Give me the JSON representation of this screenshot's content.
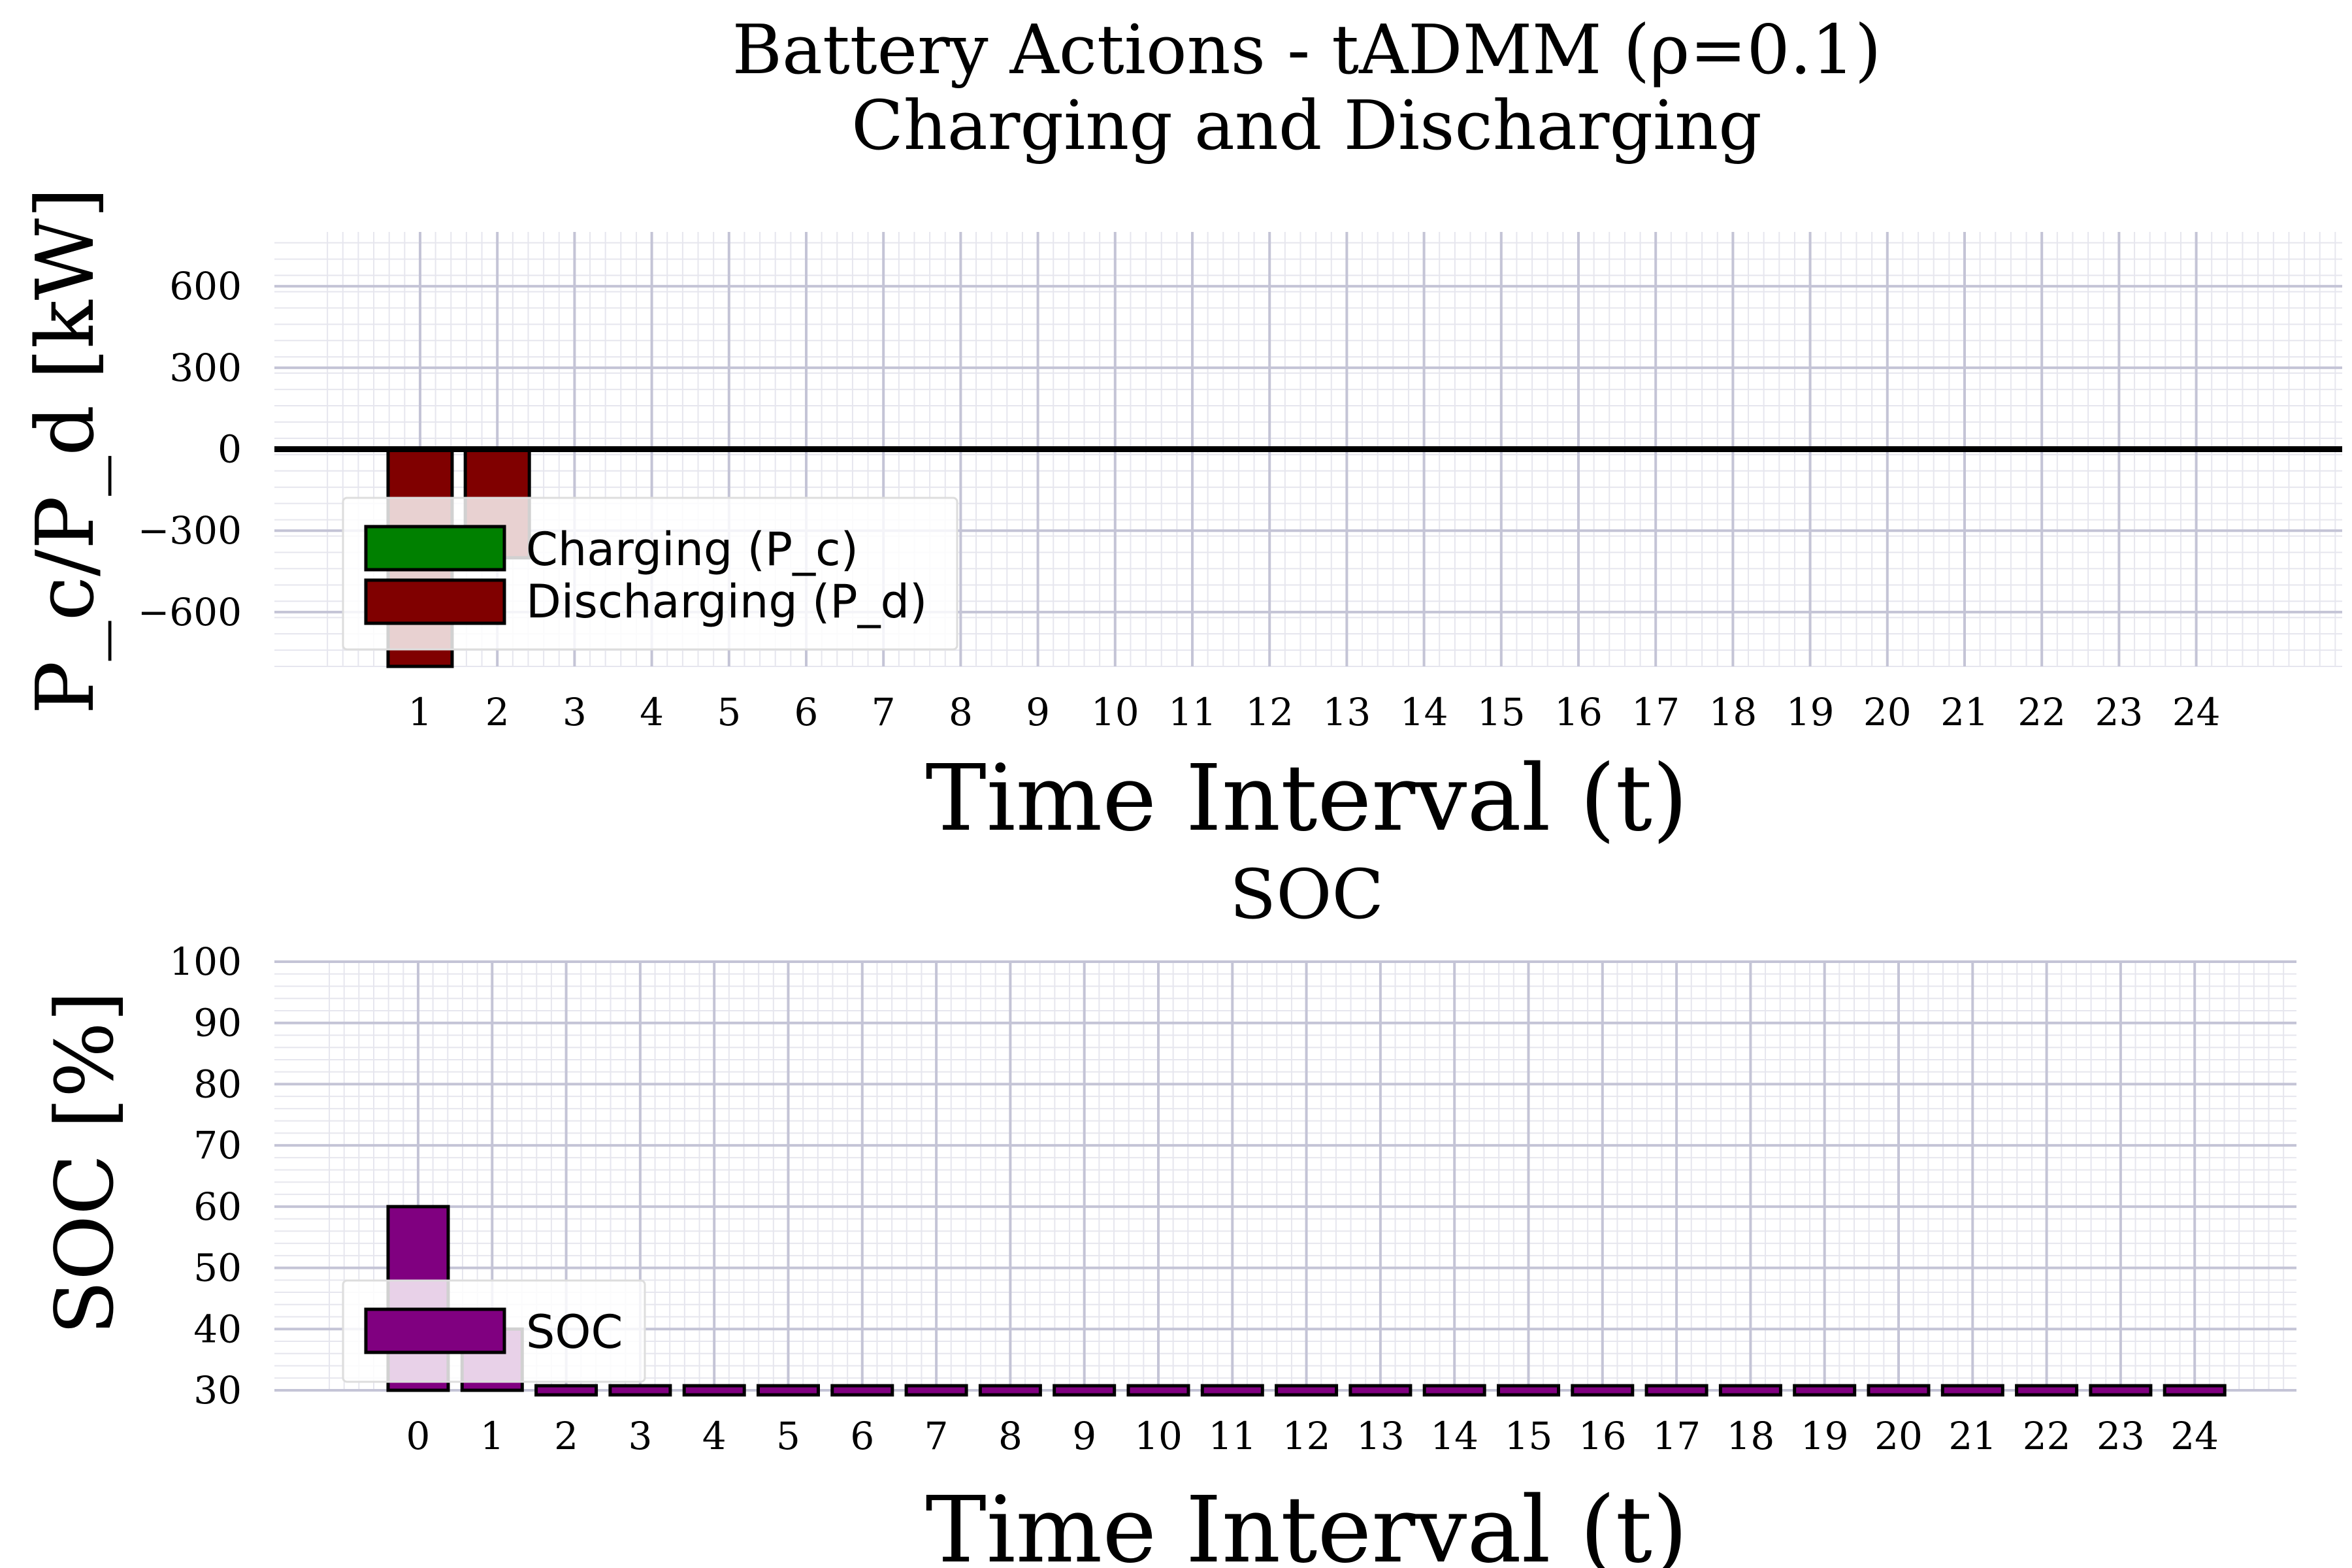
{
  "figure": {
    "title_line1": "Battery Actions - tADMM (ρ=0.1)",
    "title_line2": "Charging and Discharging"
  },
  "chart_data": [
    {
      "type": "bar",
      "title": "Charging and Discharging",
      "xlabel": "Time Interval (t)",
      "ylabel": "P_c/P_d [kW]",
      "x": [
        1,
        2,
        3,
        4,
        5,
        6,
        7,
        8,
        9,
        10,
        11,
        12,
        13,
        14,
        15,
        16,
        17,
        18,
        19,
        20,
        21,
        22,
        23,
        24
      ],
      "ylim": [
        -800,
        800
      ],
      "yticks": [
        -600,
        -300,
        0,
        300,
        600
      ],
      "ytick_labels": [
        "−600",
        "−300",
        "0",
        "300",
        "600"
      ],
      "grid": true,
      "legend_position": "lower-left",
      "series": [
        {
          "name": "Charging (P_c)",
          "color": "#008000",
          "values": [
            0,
            0,
            0,
            0,
            0,
            0,
            0,
            0,
            0,
            0,
            0,
            0,
            0,
            0,
            0,
            0,
            0,
            0,
            0,
            0,
            0,
            0,
            0,
            0
          ]
        },
        {
          "name": "Discharging (P_d)",
          "color": "#800000",
          "values": [
            -800,
            -400,
            0,
            0,
            0,
            0,
            0,
            0,
            0,
            0,
            0,
            0,
            0,
            0,
            0,
            0,
            0,
            0,
            0,
            0,
            0,
            0,
            0,
            0
          ]
        }
      ]
    },
    {
      "type": "bar",
      "title": "SOC",
      "xlabel": "Time Interval (t)",
      "ylabel": "SOC [%]",
      "x": [
        0,
        1,
        2,
        3,
        4,
        5,
        6,
        7,
        8,
        9,
        10,
        11,
        12,
        13,
        14,
        15,
        16,
        17,
        18,
        19,
        20,
        21,
        22,
        23,
        24
      ],
      "ylim": [
        30,
        100
      ],
      "yticks": [
        30,
        40,
        50,
        60,
        70,
        80,
        90,
        100
      ],
      "ytick_labels": [
        "30",
        "40",
        "50",
        "60",
        "70",
        "80",
        "90",
        "100"
      ],
      "grid": true,
      "legend_position": "lower-left",
      "series": [
        {
          "name": "SOC",
          "color": "#800080",
          "values": [
            60,
            40,
            30,
            30,
            30,
            30,
            30,
            30,
            30,
            30,
            30,
            30,
            30,
            30,
            30,
            30,
            30,
            30,
            30,
            30,
            30,
            30,
            30,
            30,
            30
          ]
        }
      ]
    }
  ]
}
